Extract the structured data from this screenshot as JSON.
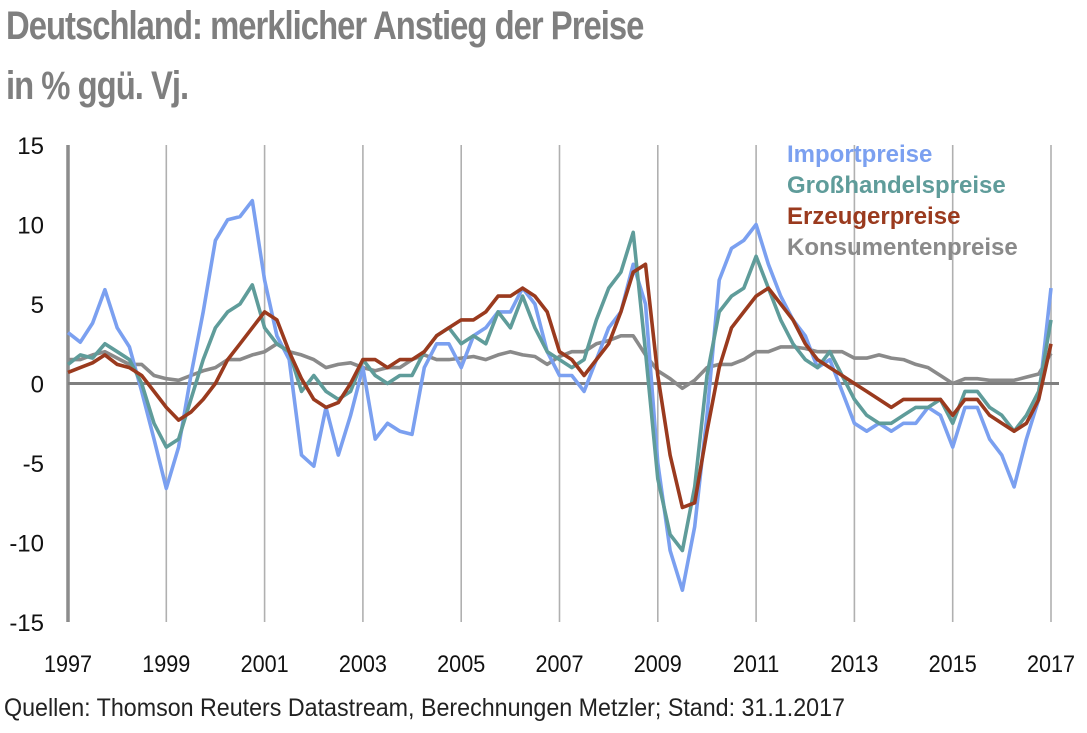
{
  "chart_data": {
    "type": "line",
    "title": "Deutschland: merklicher Anstieg der Preise",
    "subtitle": "in % ggü. Vj.",
    "xlabel": "",
    "ylabel": "",
    "xlim": [
      1997,
      2017
    ],
    "ylim": [
      -15,
      15
    ],
    "x_ticks": [
      "1997",
      "1999",
      "2001",
      "2003",
      "2005",
      "2007",
      "2009",
      "2011",
      "2013",
      "2015",
      "2017"
    ],
    "y_ticks": [
      "15",
      "10",
      "5",
      "0",
      "-5",
      "-10",
      "-15"
    ],
    "grid": "vertical",
    "legend_position": "top-right",
    "x_start": 1997,
    "x_step": 0.25,
    "series": [
      {
        "name": "Importpreise",
        "color": "#7ba0f0",
        "values": [
          3.2,
          2.6,
          3.8,
          5.9,
          3.5,
          2.3,
          -0.5,
          -3.5,
          -6.6,
          -4.0,
          0.5,
          4.5,
          9.0,
          10.3,
          10.5,
          11.5,
          6.5,
          3.0,
          1.5,
          -4.5,
          -5.2,
          -1.5,
          -4.5,
          -2.0,
          1.0,
          -3.5,
          -2.5,
          -3.0,
          -3.2,
          1.0,
          2.5,
          2.5,
          1.0,
          3.0,
          3.5,
          4.5,
          4.5,
          6.0,
          5.0,
          2.0,
          0.5,
          0.5,
          -0.5,
          1.5,
          3.5,
          4.5,
          7.5,
          5.0,
          -5.0,
          -10.5,
          -13.0,
          -9.0,
          -2.0,
          6.5,
          8.5,
          9.0,
          10.0,
          7.5,
          5.5,
          4.0,
          3.0,
          1.0,
          1.5,
          -0.5,
          -2.5,
          -3.0,
          -2.5,
          -3.0,
          -2.5,
          -2.5,
          -1.5,
          -2.0,
          -4.0,
          -1.5,
          -1.5,
          -3.5,
          -4.5,
          -6.5,
          -3.5,
          -1.0,
          6.0
        ]
      },
      {
        "name": "Großhandelspreise",
        "color": "#5f9c9a",
        "values": [
          1.2,
          1.8,
          1.6,
          2.5,
          2.0,
          1.5,
          0.0,
          -2.5,
          -4.0,
          -3.5,
          -1.0,
          1.5,
          3.5,
          4.5,
          5.0,
          6.2,
          3.5,
          2.5,
          2.0,
          -0.5,
          0.5,
          -0.5,
          -1.0,
          -0.5,
          1.5,
          0.5,
          0.0,
          0.5,
          0.5,
          2.0,
          3.0,
          3.5,
          2.5,
          3.0,
          2.5,
          4.5,
          3.5,
          5.5,
          3.5,
          2.0,
          1.5,
          1.0,
          1.5,
          4.0,
          6.0,
          7.0,
          9.5,
          2.0,
          -6.0,
          -9.5,
          -10.5,
          -6.5,
          0.5,
          4.5,
          5.5,
          6.0,
          8.0,
          6.0,
          4.0,
          2.5,
          1.5,
          1.0,
          2.0,
          0.5,
          -1.0,
          -2.0,
          -2.5,
          -2.5,
          -2.0,
          -1.5,
          -1.5,
          -1.0,
          -2.5,
          -0.5,
          -0.5,
          -1.5,
          -2.0,
          -3.0,
          -2.0,
          -0.5,
          4.0
        ]
      },
      {
        "name": "Erzeugerpreise",
        "color": "#9a3a1e",
        "values": [
          0.7,
          1.0,
          1.3,
          1.8,
          1.2,
          1.0,
          0.5,
          -0.5,
          -1.5,
          -2.3,
          -1.8,
          -1.0,
          0.0,
          1.5,
          2.5,
          3.5,
          4.5,
          4.0,
          2.0,
          0.3,
          -1.0,
          -1.5,
          -1.2,
          0.0,
          1.5,
          1.5,
          1.0,
          1.5,
          1.5,
          2.0,
          3.0,
          3.5,
          4.0,
          4.0,
          4.5,
          5.5,
          5.5,
          6.0,
          5.5,
          4.5,
          2.0,
          1.5,
          0.5,
          1.5,
          2.5,
          4.5,
          7.0,
          7.5,
          0.5,
          -4.5,
          -7.8,
          -7.5,
          -3.0,
          1.0,
          3.5,
          4.5,
          5.5,
          6.0,
          5.0,
          4.0,
          2.5,
          1.5,
          1.0,
          0.5,
          0.0,
          -0.5,
          -1.0,
          -1.5,
          -1.0,
          -1.0,
          -1.0,
          -1.0,
          -2.0,
          -1.0,
          -1.0,
          -2.0,
          -2.5,
          -3.0,
          -2.5,
          -1.0,
          2.5
        ]
      },
      {
        "name": "Konsumentenpreise",
        "color": "#8a8a8a",
        "values": [
          1.5,
          1.5,
          1.8,
          2.0,
          1.6,
          1.2,
          1.2,
          0.5,
          0.3,
          0.2,
          0.5,
          0.8,
          1.0,
          1.5,
          1.5,
          1.8,
          2.0,
          2.5,
          2.0,
          1.8,
          1.5,
          1.0,
          1.2,
          1.3,
          1.0,
          0.8,
          1.0,
          1.0,
          1.5,
          1.8,
          1.5,
          1.5,
          1.6,
          1.7,
          1.5,
          1.8,
          2.0,
          1.8,
          1.7,
          1.2,
          1.7,
          2.0,
          2.0,
          2.5,
          2.7,
          3.0,
          3.0,
          1.8,
          0.8,
          0.3,
          -0.3,
          0.2,
          1.0,
          1.2,
          1.2,
          1.5,
          2.0,
          2.0,
          2.3,
          2.3,
          2.2,
          2.0,
          2.0,
          2.0,
          1.6,
          1.6,
          1.8,
          1.6,
          1.5,
          1.2,
          1.0,
          0.5,
          0.0,
          0.3,
          0.3,
          0.2,
          0.2,
          0.2,
          0.4,
          0.6,
          1.9
        ]
      }
    ],
    "source": "Quellen: Thomson Reuters Datastream, Berechnungen Metzler; Stand: 31.1.2017"
  }
}
